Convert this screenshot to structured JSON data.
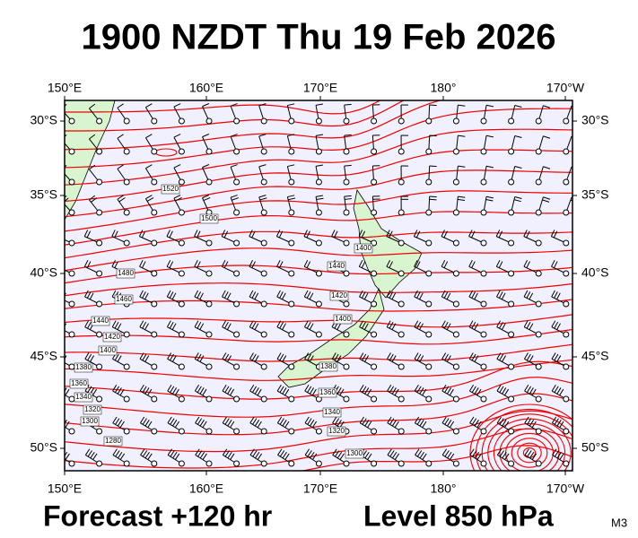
{
  "header": {
    "title": "1900 NZDT Thu 19 Feb 2026"
  },
  "footer": {
    "forecast": "Forecast +120 hr",
    "level": "Level 850 hPa",
    "code": "M3"
  },
  "axes": {
    "longitude_labels": [
      "150°E",
      "160°E",
      "170°E",
      "180°",
      "170°W"
    ],
    "latitude_labels": [
      "30°S",
      "35°S",
      "40°S",
      "45°S",
      "50°S"
    ]
  },
  "contour_labels": [
    "1520",
    "1500",
    "1480",
    "1460",
    "1440",
    "1420",
    "1400",
    "1380",
    "1360",
    "1340",
    "1320",
    "1300",
    "1280",
    "1440",
    "1420",
    "1400",
    "1400",
    "1380",
    "1360",
    "1340",
    "1320",
    "1300"
  ]
}
